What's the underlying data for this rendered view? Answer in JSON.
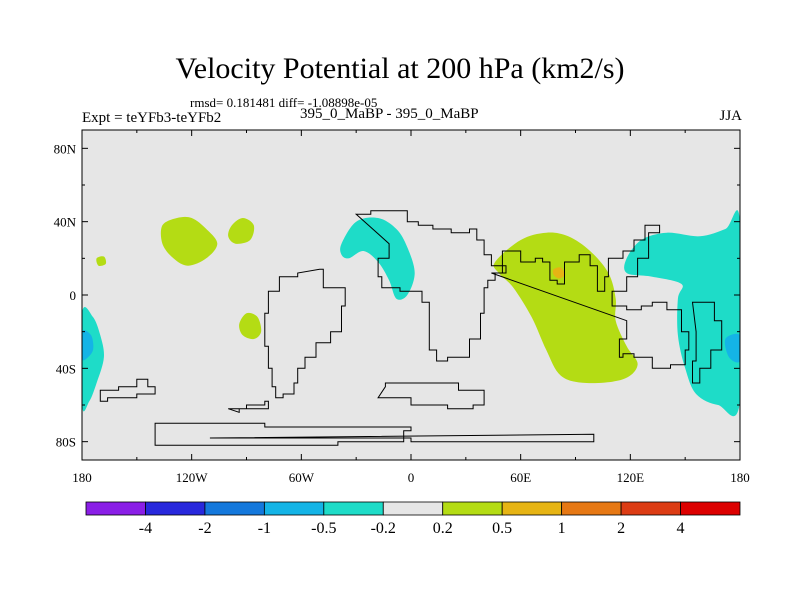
{
  "chart_data": {
    "type": "heatmap",
    "title": "Velocity Potential at 200 hPa (km2/s)",
    "stats_text": "rmsd= 0.181481 diff= -1.08898e-05",
    "experiment_text": "Expt = teYFb3-teYFb2",
    "case_text": "395_0_MaBP - 395_0_MaBP",
    "season": "JJA",
    "xlim": [
      -180,
      180
    ],
    "ylim": [
      -90,
      90
    ],
    "x_ticks": [
      {
        "value": -180,
        "label": "180"
      },
      {
        "value": -120,
        "label": "120W"
      },
      {
        "value": -60,
        "label": "60W"
      },
      {
        "value": 0,
        "label": "0"
      },
      {
        "value": 60,
        "label": "60E"
      },
      {
        "value": 120,
        "label": "120E"
      },
      {
        "value": 180,
        "label": "180"
      }
    ],
    "y_ticks": [
      {
        "value": 80,
        "label": "80N"
      },
      {
        "value": 40,
        "label": "40N"
      },
      {
        "value": 0,
        "label": "0"
      },
      {
        "value": -40,
        "label": "40S"
      },
      {
        "value": -80,
        "label": "80S"
      }
    ],
    "background_color": "#e6e6e6",
    "colorbar": {
      "colors": [
        "#8a1ee6",
        "#2828dc",
        "#1478dc",
        "#14b4e6",
        "#1edcc8",
        "#e6e6e6",
        "#b4dc14",
        "#e6b414",
        "#e67814",
        "#dc3c14",
        "#dc0000"
      ],
      "labels": [
        "-4",
        "-2",
        "-1",
        "-0.5",
        "-0.2",
        "0.2",
        "0.5",
        "1",
        "2",
        "4"
      ]
    },
    "regions": [
      {
        "name": "region-pacific-east-negative",
        "color": "#1edcc8",
        "points": [
          [
            -180,
            -10
          ],
          [
            -174,
            -12
          ],
          [
            -170,
            -22
          ],
          [
            -168,
            -34
          ],
          [
            -172,
            -48
          ],
          [
            -176,
            -58
          ],
          [
            -180,
            -60
          ]
        ]
      },
      {
        "name": "region-pacific-east-core",
        "color": "#14b4e6",
        "points": [
          [
            -180,
            -20
          ],
          [
            -175,
            -22
          ],
          [
            -174,
            -30
          ],
          [
            -178,
            -35
          ],
          [
            -180,
            -34
          ]
        ]
      },
      {
        "name": "region-pacific-north-positive",
        "color": "#b4dc14",
        "points": [
          [
            -136,
            38
          ],
          [
            -128,
            42
          ],
          [
            -120,
            42
          ],
          [
            -112,
            36
          ],
          [
            -106,
            28
          ],
          [
            -112,
            20
          ],
          [
            -122,
            16
          ],
          [
            -130,
            20
          ],
          [
            -136,
            28
          ]
        ]
      },
      {
        "name": "region-pacific-small-positive",
        "color": "#b4dc14",
        "points": [
          [
            -98,
            38
          ],
          [
            -92,
            42
          ],
          [
            -86,
            38
          ],
          [
            -88,
            30
          ],
          [
            -96,
            28
          ],
          [
            -100,
            32
          ]
        ]
      },
      {
        "name": "region-pacific-tiny-positive",
        "color": "#b4dc14",
        "points": [
          [
            -172,
            20
          ],
          [
            -168,
            21
          ],
          [
            -167,
            17
          ],
          [
            -171,
            16
          ]
        ]
      },
      {
        "name": "region-equatorial-positive",
        "color": "#b4dc14",
        "points": [
          [
            -90,
            -10
          ],
          [
            -84,
            -12
          ],
          [
            -82,
            -20
          ],
          [
            -86,
            -24
          ],
          [
            -92,
            -22
          ],
          [
            -94,
            -16
          ]
        ]
      },
      {
        "name": "region-atlantic-negative",
        "color": "#1edcc8",
        "points": [
          [
            -38,
            28
          ],
          [
            -30,
            40
          ],
          [
            -18,
            42
          ],
          [
            -8,
            36
          ],
          [
            -2,
            26
          ],
          [
            2,
            12
          ],
          [
            -2,
            0
          ],
          [
            -8,
            -2
          ],
          [
            -12,
            8
          ],
          [
            -18,
            18
          ],
          [
            -26,
            24
          ],
          [
            -34,
            20
          ],
          [
            -38,
            22
          ]
        ]
      },
      {
        "name": "region-asia-positive",
        "color": "#b4dc14",
        "points": [
          [
            46,
            18
          ],
          [
            60,
            30
          ],
          [
            74,
            34
          ],
          [
            86,
            32
          ],
          [
            98,
            24
          ],
          [
            108,
            12
          ],
          [
            112,
            -2
          ],
          [
            112,
            -14
          ],
          [
            118,
            -28
          ],
          [
            124,
            -38
          ],
          [
            116,
            -46
          ],
          [
            96,
            -48
          ],
          [
            82,
            -44
          ],
          [
            74,
            -30
          ],
          [
            66,
            -12
          ],
          [
            56,
            4
          ],
          [
            48,
            12
          ]
        ]
      },
      {
        "name": "region-asia-max",
        "color": "#e6b414",
        "points": [
          [
            78,
            14
          ],
          [
            82,
            15
          ],
          [
            84,
            11
          ],
          [
            81,
            9
          ],
          [
            78,
            11
          ]
        ]
      },
      {
        "name": "region-pacific-west-negative",
        "color": "#1edcc8",
        "points": [
          [
            118,
            20
          ],
          [
            126,
            30
          ],
          [
            140,
            34
          ],
          [
            158,
            32
          ],
          [
            172,
            36
          ],
          [
            180,
            40
          ],
          [
            180,
            -58
          ],
          [
            168,
            -60
          ],
          [
            156,
            -54
          ],
          [
            150,
            -40
          ],
          [
            146,
            -22
          ],
          [
            146,
            -2
          ],
          [
            148,
            6
          ],
          [
            132,
            10
          ],
          [
            118,
            12
          ]
        ]
      },
      {
        "name": "region-pacific-west-core",
        "color": "#14b4e6",
        "points": [
          [
            172,
            -24
          ],
          [
            180,
            -22
          ],
          [
            180,
            -36
          ],
          [
            174,
            -34
          ]
        ]
      }
    ],
    "coastlines": [
      [
        [
          -170,
          -52
        ],
        [
          -160,
          -50
        ],
        [
          -150,
          -46
        ],
        [
          -144,
          -50
        ],
        [
          -140,
          -54
        ],
        [
          -150,
          -56
        ],
        [
          -166,
          -58
        ],
        [
          -170,
          -54
        ]
      ],
      [
        [
          -100,
          -62
        ],
        [
          -90,
          -60
        ],
        [
          -80,
          -58
        ],
        [
          -78,
          -62
        ],
        [
          -94,
          -64
        ]
      ],
      [
        [
          -50,
          14
        ],
        [
          -48,
          4
        ],
        [
          -36,
          -6
        ],
        [
          -38,
          -20
        ],
        [
          -44,
          -26
        ],
        [
          -52,
          -34
        ],
        [
          -58,
          -40
        ],
        [
          -62,
          -48
        ],
        [
          -64,
          -54
        ],
        [
          -70,
          -56
        ],
        [
          -74,
          -50
        ],
        [
          -76,
          -40
        ],
        [
          -78,
          -28
        ],
        [
          -80,
          -10
        ],
        [
          -78,
          2
        ],
        [
          -72,
          10
        ],
        [
          -62,
          12
        ]
      ],
      [
        [
          -30,
          44
        ],
        [
          -22,
          46
        ],
        [
          -10,
          46
        ],
        [
          -2,
          40
        ],
        [
          4,
          38
        ],
        [
          12,
          36
        ],
        [
          22,
          34
        ],
        [
          32,
          36
        ],
        [
          36,
          30
        ],
        [
          40,
          22
        ],
        [
          44,
          16
        ],
        [
          52,
          12
        ],
        [
          46,
          8
        ],
        [
          42,
          4
        ],
        [
          40,
          -10
        ],
        [
          38,
          -24
        ],
        [
          32,
          -34
        ],
        [
          20,
          -36
        ],
        [
          14,
          -30
        ],
        [
          10,
          -16
        ],
        [
          10,
          -4
        ],
        [
          6,
          2
        ],
        [
          -6,
          4
        ],
        [
          -16,
          10
        ],
        [
          -18,
          20
        ],
        [
          -12,
          28
        ]
      ],
      [
        [
          -18,
          -56
        ],
        [
          0,
          -60
        ],
        [
          20,
          -62
        ],
        [
          34,
          -60
        ],
        [
          40,
          -52
        ],
        [
          26,
          -48
        ],
        [
          4,
          -48
        ],
        [
          -14,
          -50
        ]
      ],
      [
        [
          -140,
          -70
        ],
        [
          -110,
          -70
        ],
        [
          -80,
          -72
        ],
        [
          -50,
          -72
        ],
        [
          -20,
          -72
        ],
        [
          0,
          -74
        ],
        [
          -4,
          -80
        ],
        [
          -40,
          -82
        ],
        [
          -100,
          -82
        ],
        [
          -140,
          -80
        ]
      ],
      [
        [
          44,
          12
        ],
        [
          50,
          24
        ],
        [
          56,
          24
        ],
        [
          60,
          18
        ],
        [
          68,
          20
        ],
        [
          72,
          18
        ],
        [
          76,
          8
        ],
        [
          80,
          6
        ],
        [
          84,
          18
        ],
        [
          92,
          22
        ],
        [
          98,
          16
        ],
        [
          102,
          2
        ],
        [
          106,
          10
        ],
        [
          108,
          20
        ],
        [
          116,
          24
        ],
        [
          122,
          30
        ],
        [
          128,
          38
        ],
        [
          136,
          34
        ],
        [
          130,
          20
        ],
        [
          124,
          10
        ],
        [
          118,
          2
        ],
        [
          110,
          -6
        ],
        [
          118,
          -8
        ],
        [
          126,
          -6
        ],
        [
          132,
          -4
        ],
        [
          140,
          -8
        ],
        [
          148,
          -20
        ],
        [
          152,
          -30
        ],
        [
          150,
          -38
        ],
        [
          142,
          -40
        ],
        [
          132,
          -34
        ],
        [
          122,
          -32
        ],
        [
          116,
          -34
        ],
        [
          114,
          -24
        ],
        [
          118,
          -14
        ]
      ],
      [
        [
          154,
          -4
        ],
        [
          166,
          -14
        ],
        [
          170,
          -30
        ],
        [
          164,
          -40
        ],
        [
          158,
          -48
        ],
        [
          154,
          -36
        ],
        [
          156,
          -20
        ]
      ],
      [
        [
          -110,
          -78
        ],
        [
          -50,
          -78
        ],
        [
          0,
          -80
        ],
        [
          60,
          -80
        ],
        [
          100,
          -76
        ]
      ]
    ]
  }
}
